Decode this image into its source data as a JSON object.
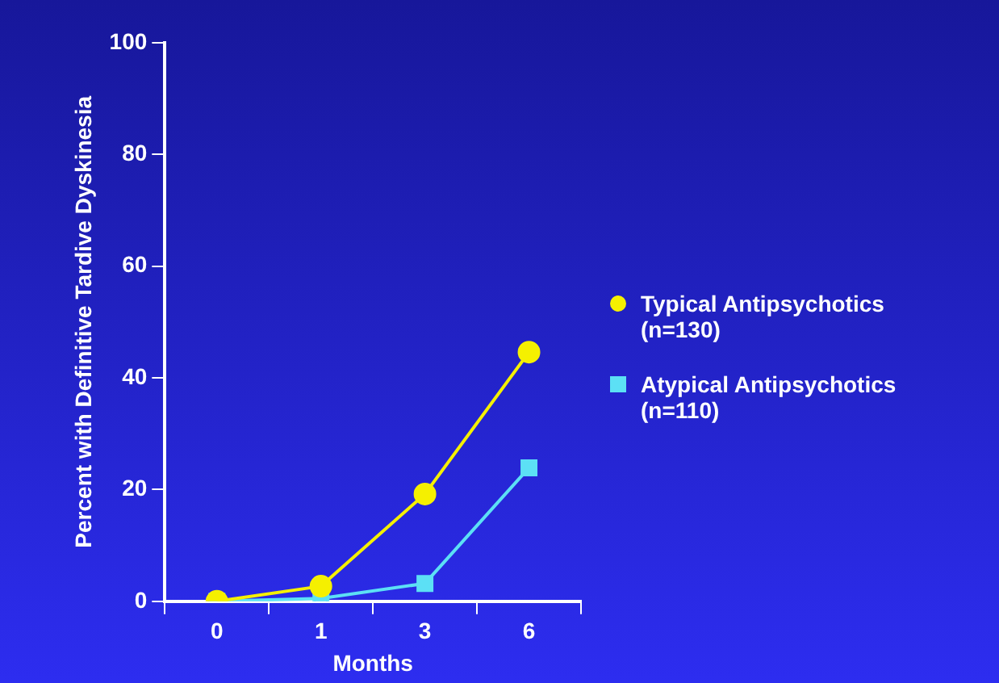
{
  "chart_data": {
    "type": "line",
    "xlabel": "Months",
    "ylabel": "Percent with Definitive Tardive Dyskinesia",
    "categories": [
      "0",
      "1",
      "3",
      "6"
    ],
    "ylim": [
      0,
      100
    ],
    "yticks": [
      0,
      20,
      40,
      60,
      80,
      100
    ],
    "grid": false,
    "legend": "right",
    "series": [
      {
        "name": "Typical Antipsychotics (n=130)",
        "color": "#f5f000",
        "marker": "circle",
        "values": [
          0,
          2.7,
          19.2,
          44.6
        ]
      },
      {
        "name": "Atypical Antipsychotics (n=110)",
        "color": "#5ce0f5",
        "marker": "square",
        "values": [
          0,
          0.5,
          3.2,
          23.9
        ]
      }
    ]
  }
}
